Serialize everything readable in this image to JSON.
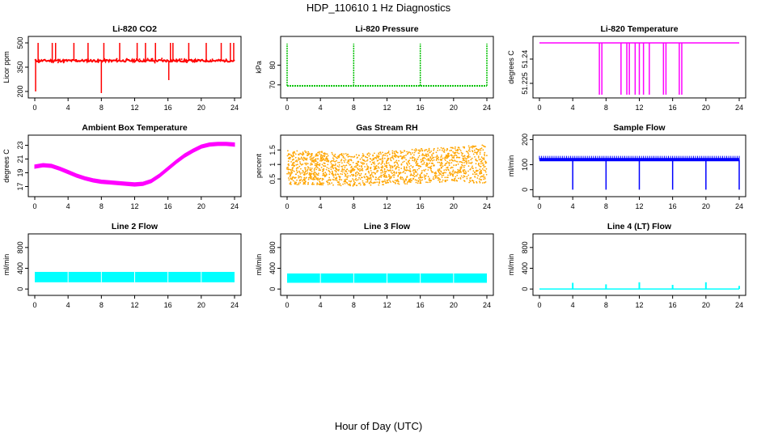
{
  "title": "HDP_110610  1 Hz Diagnostics",
  "xlabel": "Hour of Day (UTC)",
  "colors": {
    "red": "#ff0000",
    "green": "#00c000",
    "magenta": "#ff00ff",
    "orange": "#ffa500",
    "blue": "#0000ff",
    "cyan": "#00ffff"
  },
  "chart_data": [
    {
      "type": "line",
      "title": "Li-820 CO2",
      "ylabel": "Licor ppm",
      "color": "#ff0000",
      "xlim": [
        0,
        24
      ],
      "xticks": [
        0,
        4,
        8,
        12,
        16,
        20,
        24
      ],
      "ylim": [
        180,
        520
      ],
      "yticks": [
        200,
        350,
        500
      ],
      "series": [
        {
          "name": "baseline",
          "x": [
            0,
            24
          ],
          "values": [
            390,
            390
          ]
        }
      ],
      "spikes_up": [
        0.4,
        2.1,
        2.5,
        4.7,
        6.4,
        8.3,
        10.2,
        12.3,
        13.3,
        14.5,
        16.3,
        16.6,
        18.5,
        20.6,
        22.4,
        23.5,
        23.9
      ],
      "spike_top": 500,
      "drops": [
        {
          "x": 0.1,
          "value": 200
        },
        {
          "x": 8.0,
          "value": 190
        },
        {
          "x": 16.1,
          "value": 270
        }
      ]
    },
    {
      "type": "line",
      "title": "Li-820 Pressure",
      "ylabel": "kPa",
      "color": "#00c000",
      "xlim": [
        0,
        24
      ],
      "xticks": [
        0,
        4,
        8,
        12,
        16,
        20,
        24
      ],
      "ylim": [
        65,
        93
      ],
      "yticks": [
        70,
        80
      ],
      "series": [
        {
          "name": "baseline",
          "x": [
            0,
            24
          ],
          "values": [
            69.5,
            69.5
          ]
        }
      ],
      "spikes_up": [
        0,
        8,
        16,
        24
      ],
      "spike_top": 91
    },
    {
      "type": "line",
      "title": "Li-820 Temperature",
      "ylabel": "degrees C",
      "color": "#ff00ff",
      "xlim": [
        0,
        24
      ],
      "xticks": [
        0,
        4,
        8,
        12,
        16,
        20,
        24
      ],
      "ylim": [
        51.218,
        51.252
      ],
      "yticks": [
        51.225,
        51.24
      ],
      "series": [
        {
          "name": "baseline",
          "x": [
            0,
            24
          ],
          "values": [
            51.25,
            51.25
          ]
        }
      ],
      "drops": [
        7.2,
        7.5,
        9.8,
        10.5,
        10.8,
        11.5,
        12.0,
        12.5,
        13.2,
        14.9,
        15.2,
        16.8,
        17.1
      ],
      "drop_value": 51.218
    },
    {
      "type": "line",
      "title": "Ambient Box Temperature",
      "ylabel": "degrees C",
      "color": "#ff00ff",
      "xlim": [
        0,
        24
      ],
      "xticks": [
        0,
        4,
        8,
        12,
        16,
        20,
        24
      ],
      "ylim": [
        16,
        24
      ],
      "yticks": [
        17,
        19,
        21,
        23
      ],
      "series": [
        {
          "name": "temperature",
          "x": [
            0,
            1,
            2,
            3,
            4,
            5,
            6,
            7,
            8,
            9,
            10,
            11,
            12,
            13,
            14,
            15,
            16,
            17,
            18,
            19,
            20,
            21,
            22,
            23,
            24
          ],
          "values": [
            19.9,
            20.1,
            20.0,
            19.6,
            19.1,
            18.6,
            18.2,
            17.9,
            17.7,
            17.6,
            17.5,
            17.4,
            17.3,
            17.4,
            17.8,
            18.6,
            19.6,
            20.6,
            21.5,
            22.2,
            22.8,
            23.1,
            23.2,
            23.2,
            23.1
          ]
        }
      ],
      "band": 0.5
    },
    {
      "type": "scatter",
      "title": "Gas Stream RH",
      "ylabel": "percent",
      "color": "#ffa500",
      "xlim": [
        0,
        24
      ],
      "xticks": [
        0,
        4,
        8,
        12,
        16,
        20,
        24
      ],
      "ylim": [
        0,
        1.9
      ],
      "yticks": [
        0.5,
        1.0,
        1.5
      ],
      "envelope": {
        "x": [
          0,
          4,
          8,
          12,
          16,
          20,
          24
        ],
        "low": [
          0.3,
          0.3,
          0.25,
          0.3,
          0.35,
          0.4,
          0.35
        ],
        "high": [
          1.5,
          1.45,
          1.35,
          1.45,
          1.55,
          1.6,
          1.7
        ]
      }
    },
    {
      "type": "line",
      "title": "Sample Flow",
      "ylabel": "ml/min",
      "color": "#0000ff",
      "xlim": [
        0,
        24
      ],
      "xticks": [
        0,
        4,
        8,
        12,
        16,
        20,
        24
      ],
      "ylim": [
        -15,
        205
      ],
      "yticks": [
        0,
        100,
        200
      ],
      "series": [
        {
          "name": "flow",
          "x": [
            0,
            24
          ],
          "values": [
            125,
            125
          ]
        }
      ],
      "drops": [
        4,
        8,
        12,
        16,
        20,
        24
      ],
      "drop_value": 0
    },
    {
      "type": "area",
      "title": "Line 2 Flow",
      "ylabel": "ml/min",
      "color": "#00ffff",
      "xlim": [
        0,
        24
      ],
      "xticks": [
        0,
        4,
        8,
        12,
        16,
        20,
        24
      ],
      "ylim": [
        -60,
        1000
      ],
      "yticks": [
        0,
        400,
        800
      ],
      "band": {
        "low": 130,
        "high": 330
      },
      "gaps": [
        4,
        8,
        12,
        16,
        20
      ]
    },
    {
      "type": "area",
      "title": "Line 3 Flow",
      "ylabel": "ml/min",
      "color": "#00ffff",
      "xlim": [
        0,
        24
      ],
      "xticks": [
        0,
        4,
        8,
        12,
        16,
        20,
        24
      ],
      "ylim": [
        -60,
        1000
      ],
      "yticks": [
        0,
        400,
        800
      ],
      "band": {
        "low": 120,
        "high": 300
      },
      "gaps": [
        4,
        8,
        12,
        16,
        20
      ]
    },
    {
      "type": "line",
      "title": "Line 4 (LT) Flow",
      "ylabel": "ml/min",
      "color": "#00ffff",
      "xlim": [
        0,
        24
      ],
      "xticks": [
        0,
        4,
        8,
        12,
        16,
        20,
        24
      ],
      "ylim": [
        -60,
        1000
      ],
      "yticks": [
        0,
        400,
        800
      ],
      "series": [
        {
          "name": "flow",
          "x": [
            0,
            24
          ],
          "values": [
            0,
            0
          ]
        }
      ],
      "spikes_up": [
        4,
        8,
        12,
        16,
        20,
        24
      ],
      "spike_heights": [
        120,
        90,
        130,
        80,
        130,
        60
      ]
    }
  ]
}
